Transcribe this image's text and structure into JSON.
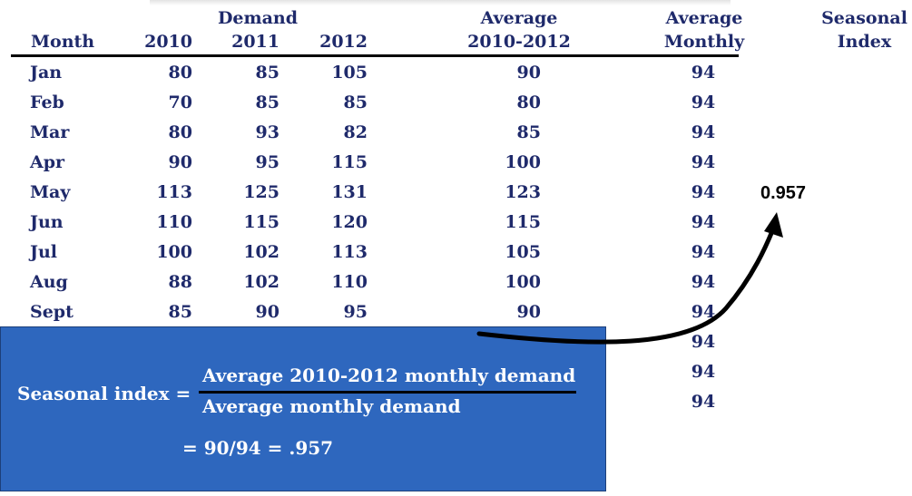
{
  "table": {
    "headers": {
      "month": "Month",
      "demand": "Demand",
      "y2010": "2010",
      "y2011": "2011",
      "y2012": "2012",
      "average_line1": "Average",
      "average_line2": "2010-2012",
      "avg_monthly_line1": "Average",
      "avg_monthly_line2": "Monthly",
      "seasonal_line1": "Seasonal",
      "seasonal_line2": "Index"
    },
    "rows": [
      {
        "month": "Jan",
        "y2010": "80",
        "y2011": "85",
        "y2012": "105",
        "average": "90",
        "avg_monthly": "94"
      },
      {
        "month": "Feb",
        "y2010": "70",
        "y2011": "85",
        "y2012": "85",
        "average": "80",
        "avg_monthly": "94"
      },
      {
        "month": "Mar",
        "y2010": "80",
        "y2011": "93",
        "y2012": "82",
        "average": "85",
        "avg_monthly": "94"
      },
      {
        "month": "Apr",
        "y2010": "90",
        "y2011": "95",
        "y2012": "115",
        "average": "100",
        "avg_monthly": "94"
      },
      {
        "month": "May",
        "y2010": "113",
        "y2011": "125",
        "y2012": "131",
        "average": "123",
        "avg_monthly": "94"
      },
      {
        "month": "Jun",
        "y2010": "110",
        "y2011": "115",
        "y2012": "120",
        "average": "115",
        "avg_monthly": "94"
      },
      {
        "month": "Jul",
        "y2010": "100",
        "y2011": "102",
        "y2012": "113",
        "average": "105",
        "avg_monthly": "94"
      },
      {
        "month": "Aug",
        "y2010": "88",
        "y2011": "102",
        "y2012": "110",
        "average": "100",
        "avg_monthly": "94"
      },
      {
        "month": "Sept",
        "y2010": "85",
        "y2011": "90",
        "y2012": "95",
        "average": "90",
        "avg_monthly": "94"
      }
    ],
    "extra_avg_monthly": [
      "94",
      "94",
      "94"
    ]
  },
  "result_value": "0.957",
  "formula": {
    "label": "Seasonal index =",
    "numerator": "Average 2010-2012 monthly demand",
    "denominator": "Average monthly demand",
    "calculation": "= 90/94 = .957"
  },
  "colors": {
    "text": "#1f2a6b",
    "box": "#2e67be",
    "arrow": "#000000"
  }
}
